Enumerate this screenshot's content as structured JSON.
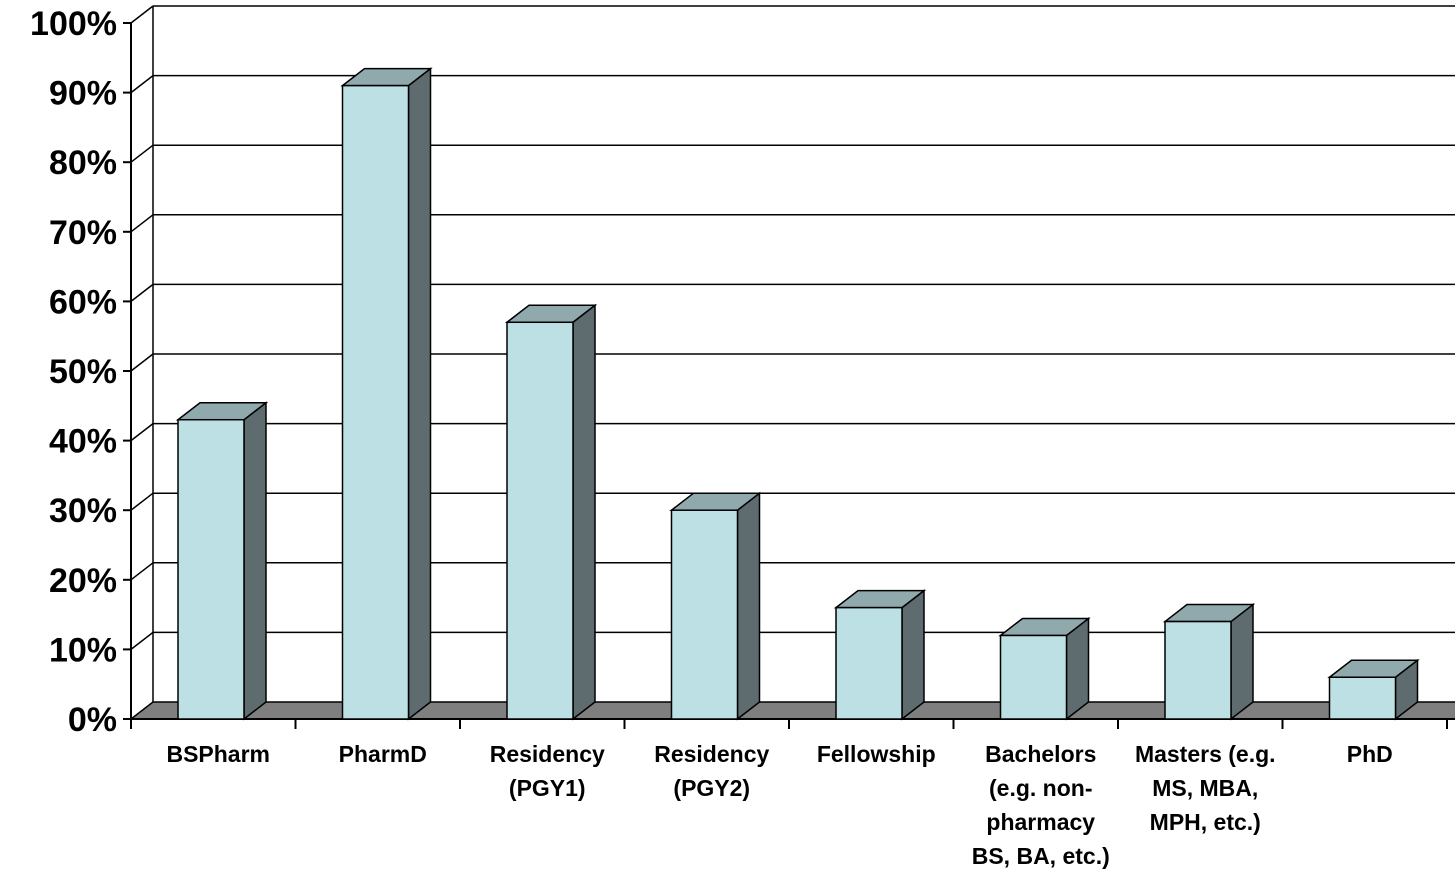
{
  "chart_data": {
    "type": "bar",
    "style": "3d-column",
    "title": "",
    "xlabel": "",
    "ylabel": "",
    "ylim": [
      0,
      100
    ],
    "y_ticks": [
      0,
      10,
      20,
      30,
      40,
      50,
      60,
      70,
      80,
      90,
      100
    ],
    "y_tick_labels": [
      "0%",
      "10%",
      "20%",
      "30%",
      "40%",
      "50%",
      "60%",
      "70%",
      "80%",
      "90%",
      "100%"
    ],
    "grid": true,
    "categories": [
      [
        "BSPharm"
      ],
      [
        "PharmD"
      ],
      [
        "Residency",
        "(PGY1)"
      ],
      [
        "Residency",
        "(PGY2)"
      ],
      [
        "Fellowship"
      ],
      [
        "Bachelors",
        "(e.g. non-",
        "pharmacy",
        "BS, BA, etc.)"
      ],
      [
        "Masters (e.g.",
        "MS, MBA,",
        "MPH, etc.)"
      ],
      [
        "PhD"
      ]
    ],
    "values": [
      43,
      91,
      57,
      30,
      16,
      12,
      14,
      6
    ],
    "colors": {
      "bar_front": "#bde0e4",
      "bar_top": "#8fa9ad",
      "bar_side": "#5e6c6f",
      "floor": "#7f7f7f",
      "grid": "#000000"
    }
  }
}
